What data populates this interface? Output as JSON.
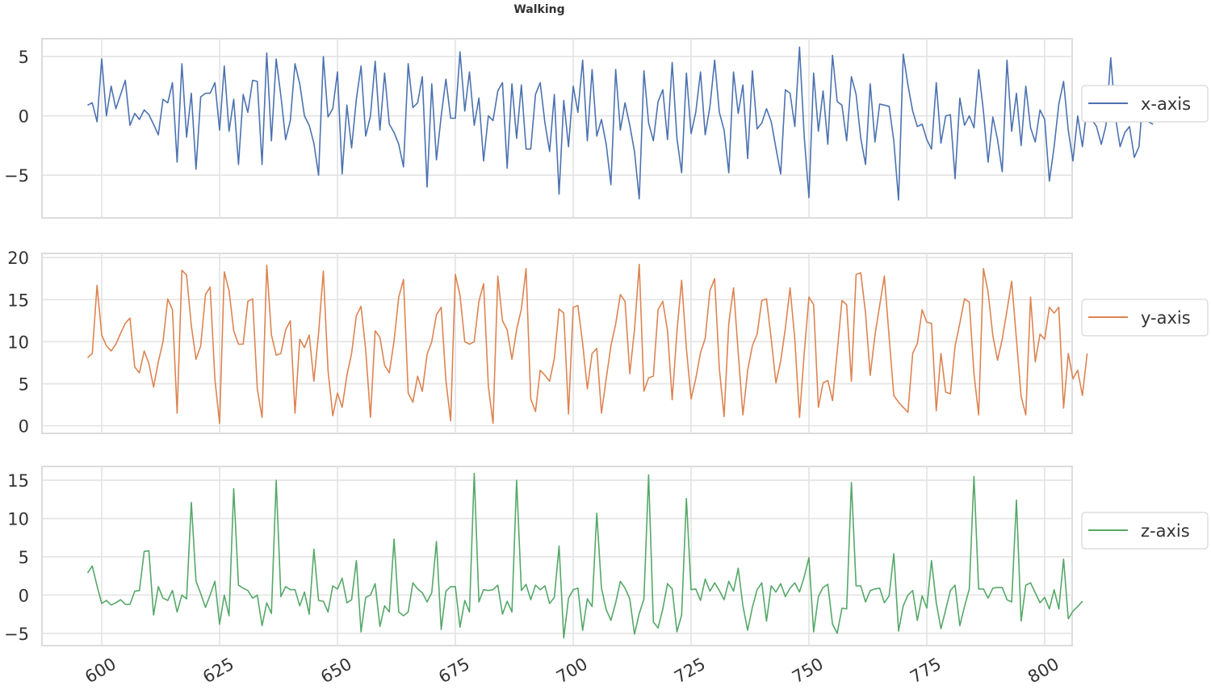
{
  "figure": {
    "title": "Walking"
  },
  "chart_data": {
    "type": "line",
    "title": "Walking",
    "xlabel": "",
    "xlim": [
      590,
      808
    ],
    "xticks": [
      600,
      625,
      650,
      675,
      700,
      725,
      750,
      775,
      800
    ],
    "xtick_rotation": 30,
    "grid": true,
    "legend_position": "right, outside each panel",
    "x_start": 597,
    "x_step": 1,
    "panels": [
      {
        "name": "x-axis",
        "legend": "x-axis",
        "color": "#4c72b0",
        "ylim": [
          -8.6,
          6.5
        ],
        "yticks": [
          5,
          0,
          -5
        ],
        "ytick_labels": [
          "5",
          "0",
          "−5"
        ],
        "values": [
          0.9,
          1.1,
          -0.5,
          4.8,
          0.0,
          2.5,
          0.6,
          1.8,
          3.0,
          -0.8,
          0.2,
          -0.3,
          0.5,
          0.1,
          -0.7,
          -1.6,
          1.4,
          1.1,
          2.8,
          -3.9,
          4.4,
          -1.8,
          1.9,
          -4.5,
          1.6,
          1.9,
          1.9,
          2.8,
          -1.2,
          4.2,
          -1.3,
          1.4,
          -4.1,
          1.8,
          0.3,
          3.0,
          2.9,
          -4.1,
          5.3,
          -2.1,
          4.8,
          1.7,
          -2.0,
          -0.4,
          4.4,
          2.7,
          0.0,
          -0.8,
          -2.3,
          -5.0,
          5.0,
          -0.1,
          0.6,
          3.7,
          -4.9,
          0.9,
          -2.7,
          1.4,
          4.2,
          -1.7,
          0.0,
          4.6,
          -1.2,
          3.6,
          -0.7,
          -1.4,
          -2.4,
          -4.3,
          4.4,
          0.7,
          1.1,
          3.3,
          -6.0,
          2.7,
          -3.7,
          0.0,
          3.1,
          -0.2,
          -0.2,
          5.4,
          0.4,
          3.7,
          -0.8,
          1.5,
          -3.8,
          0.0,
          -0.4,
          2.1,
          2.8,
          -4.4,
          2.7,
          -1.9,
          2.6,
          -2.8,
          -2.8,
          1.8,
          2.8,
          -0.6,
          -3.0,
          1.8,
          -6.6,
          1.3,
          -2.6,
          2.5,
          0.3,
          4.7,
          -2.1,
          3.9,
          -1.7,
          -0.3,
          -2.4,
          -5.8,
          3.9,
          -1.2,
          1.1,
          -0.8,
          -3.0,
          -7.0,
          3.8,
          -0.6,
          -2.1,
          1.2,
          2.2,
          -2.0,
          4.5,
          -1.9,
          -4.8,
          3.6,
          -1.5,
          0.3,
          3.7,
          -1.6,
          0.8,
          4.7,
          0.3,
          -1.2,
          -4.8,
          3.7,
          0.2,
          2.6,
          -3.6,
          3.8,
          -1.1,
          -0.6,
          0.6,
          -0.5,
          -2.7,
          -4.9,
          2.2,
          1.9,
          -0.9,
          5.8,
          -1.8,
          -6.9,
          3.6,
          -1.3,
          2.1,
          -2.4,
          5.1,
          1.2,
          0.9,
          -2.1,
          3.3,
          1.8,
          -1.9,
          -4.1,
          2.7,
          -2.2,
          1.0,
          0.9,
          0.8,
          -2.1,
          -7.1,
          5.2,
          2.6,
          0.4,
          -0.9,
          -0.7,
          -2.0,
          -2.8,
          2.8,
          -2.3,
          0.0,
          0.1,
          -5.3,
          1.5,
          -0.8,
          0.0,
          -1.0,
          3.9,
          0.4,
          -3.9,
          -0.1,
          -2.0,
          -4.7,
          4.7,
          -1.3,
          1.9,
          -2.5,
          2.5,
          -1.0,
          -2.2,
          0.5,
          -0.3,
          -5.5,
          -2.6,
          1.0,
          2.9,
          -1.2,
          -3.8,
          0.0,
          -2.6,
          0.8,
          -0.3,
          -0.9,
          -2.4,
          -0.8,
          4.9,
          -0.1,
          -2.6,
          -1.4,
          -0.9,
          -3.5,
          -2.6,
          2.3,
          -0.5,
          -0.7
        ]
      },
      {
        "name": "y-axis",
        "legend": "y-axis",
        "color": "#dd8452",
        "ylim": [
          -0.9,
          20.5
        ],
        "yticks": [
          20,
          15,
          10,
          5,
          0
        ],
        "ytick_labels": [
          "20",
          "15",
          "10",
          "5",
          "0"
        ],
        "values": [
          8.1,
          8.6,
          16.7,
          10.8,
          9.5,
          8.9,
          9.7,
          11.0,
          12.2,
          12.8,
          7.0,
          6.3,
          8.9,
          7.4,
          4.6,
          7.6,
          10.0,
          15.1,
          13.8,
          1.5,
          18.5,
          17.9,
          11.9,
          7.9,
          9.5,
          15.6,
          16.5,
          5.5,
          0.3,
          18.3,
          16.1,
          11.3,
          9.7,
          9.7,
          14.8,
          15.1,
          4.4,
          1.0,
          19.1,
          10.8,
          8.4,
          8.6,
          11.4,
          12.5,
          1.5,
          10.3,
          9.3,
          10.8,
          5.3,
          11.0,
          18.4,
          6.6,
          1.2,
          3.9,
          2.2,
          6.0,
          8.6,
          13.1,
          14.2,
          9.0,
          1.0,
          11.3,
          10.5,
          7.2,
          6.3,
          10.1,
          15.3,
          17.4,
          3.9,
          2.8,
          5.9,
          4.1,
          8.5,
          10.0,
          13.2,
          14.1,
          5.4,
          0.6,
          18.0,
          15.5,
          10.0,
          9.7,
          10.0,
          14.8,
          16.9,
          4.7,
          0.3,
          17.8,
          12.5,
          11.4,
          7.9,
          11.4,
          13.9,
          18.7,
          3.2,
          1.7,
          6.6,
          6.0,
          5.3,
          8.0,
          13.9,
          13.4,
          1.4,
          14.1,
          14.3,
          9.8,
          4.4,
          8.6,
          9.2,
          1.5,
          5.6,
          9.5,
          12.1,
          15.6,
          14.8,
          6.2,
          11.4,
          19.2,
          4.1,
          5.7,
          5.9,
          13.8,
          14.8,
          11.3,
          3.1,
          11.2,
          17.3,
          9.2,
          3.2,
          5.6,
          8.7,
          10.4,
          16.1,
          17.5,
          6.8,
          1.1,
          12.2,
          16.4,
          8.7,
          1.3,
          6.6,
          9.5,
          10.9,
          14.9,
          15.1,
          10.3,
          5.1,
          7.7,
          11.6,
          16.4,
          10.3,
          1.0,
          8.7,
          15.3,
          14.4,
          2.2,
          5.1,
          5.4,
          3.0,
          8.8,
          14.9,
          14.4,
          5.3,
          18.0,
          18.2,
          13.4,
          6.0,
          10.8,
          14.3,
          17.8,
          10.6,
          3.6,
          2.8,
          2.2,
          1.6,
          8.6,
          9.8,
          13.8,
          12.3,
          12.2,
          1.8,
          8.6,
          4.0,
          3.8,
          9.5,
          12.2,
          15.1,
          14.7,
          6.2,
          1.3,
          18.7,
          15.9,
          10.7,
          7.8,
          10.3,
          13.7,
          17.2,
          10.3,
          3.5,
          1.3,
          15.3,
          7.6,
          10.9,
          10.3,
          14.1,
          13.4,
          14.1,
          2.1,
          8.6,
          5.6,
          6.6,
          3.6,
          8.6
        ]
      },
      {
        "name": "z-axis",
        "legend": "z-axis",
        "color": "#55a868",
        "ylim": [
          -6.6,
          16.8
        ],
        "yticks": [
          15,
          10,
          5,
          0,
          -5
        ],
        "ytick_labels": [
          "15",
          "10",
          "5",
          "0",
          "−5"
        ],
        "values": [
          2.9,
          3.8,
          1.2,
          -1.1,
          -0.7,
          -1.3,
          -1.0,
          -0.6,
          -1.2,
          -1.2,
          0.5,
          0.6,
          5.7,
          5.8,
          -2.6,
          1.1,
          -0.4,
          -0.7,
          0.6,
          -2.2,
          0.0,
          -0.5,
          12.1,
          1.8,
          0.2,
          -1.6,
          0.0,
          1.8,
          -3.8,
          0.0,
          -2.7,
          13.9,
          1.3,
          0.9,
          0.6,
          -0.4,
          0.0,
          -4.0,
          -1.0,
          -2.4,
          15.0,
          -0.2,
          1.1,
          0.7,
          0.7,
          -1.4,
          0.4,
          -2.5,
          6.0,
          -0.7,
          -0.8,
          -2.2,
          1.2,
          0.8,
          2.2,
          -1.0,
          -0.6,
          4.5,
          -4.8,
          -0.3,
          0.0,
          1.5,
          -4.1,
          -1.4,
          -2.2,
          7.3,
          -2.2,
          -2.7,
          -2.2,
          1.6,
          0.8,
          0.3,
          -0.9,
          0.3,
          7.0,
          -4.5,
          0.5,
          1.1,
          1.1,
          -4.2,
          -0.7,
          -2.2,
          15.9,
          -0.9,
          0.7,
          0.6,
          0.7,
          1.3,
          -2.5,
          -0.8,
          -2.2,
          15.0,
          0.6,
          1.4,
          -0.6,
          1.3,
          0.7,
          1.2,
          -1.1,
          -0.3,
          6.4,
          -5.6,
          -0.4,
          0.7,
          0.9,
          -4.6,
          -0.5,
          -1.5,
          10.7,
          0.9,
          -1.9,
          -3.3,
          -1.0,
          1.8,
          0.9,
          -0.5,
          -5.1,
          -2.4,
          -0.5,
          15.7,
          -3.5,
          -4.3,
          -1.8,
          1.5,
          0.8,
          -4.8,
          -2.6,
          12.6,
          0.7,
          0.8,
          -0.7,
          2.1,
          0.5,
          1.6,
          0.6,
          -0.6,
          1.8,
          0.5,
          3.5,
          -1.4,
          -4.6,
          -1.6,
          0.7,
          1.6,
          -3.4,
          1.2,
          0.4,
          1.5,
          -0.2,
          0.9,
          1.6,
          0.4,
          2.4,
          4.9,
          -4.8,
          -0.2,
          1.0,
          1.4,
          -3.8,
          -5.0,
          -1.7,
          -1.8,
          14.7,
          1.2,
          1.2,
          -0.9,
          0.6,
          0.8,
          0.9,
          -1.0,
          -0.1,
          5.4,
          -4.7,
          -1.4,
          0.0,
          0.6,
          -3.3,
          -0.1,
          -1.7,
          4.5,
          -1.0,
          -4.4,
          -1.9,
          0.6,
          1.3,
          -4.0,
          -1.5,
          0.8,
          15.5,
          0.8,
          0.8,
          -0.4,
          0.9,
          1.0,
          1.0,
          -0.6,
          -0.9,
          12.4,
          -3.4,
          1.3,
          1.6,
          0.3,
          -1.0,
          -0.3,
          -1.8,
          0.7,
          -1.8,
          4.7,
          -3.1,
          -2.1,
          -1.5,
          -0.8
        ]
      }
    ]
  },
  "style": {
    "grid_color": "#e3e3e3",
    "frame_color": "#dcdcdc",
    "tick_label_color": "#333333",
    "legend_border": "#d6d6d6"
  }
}
